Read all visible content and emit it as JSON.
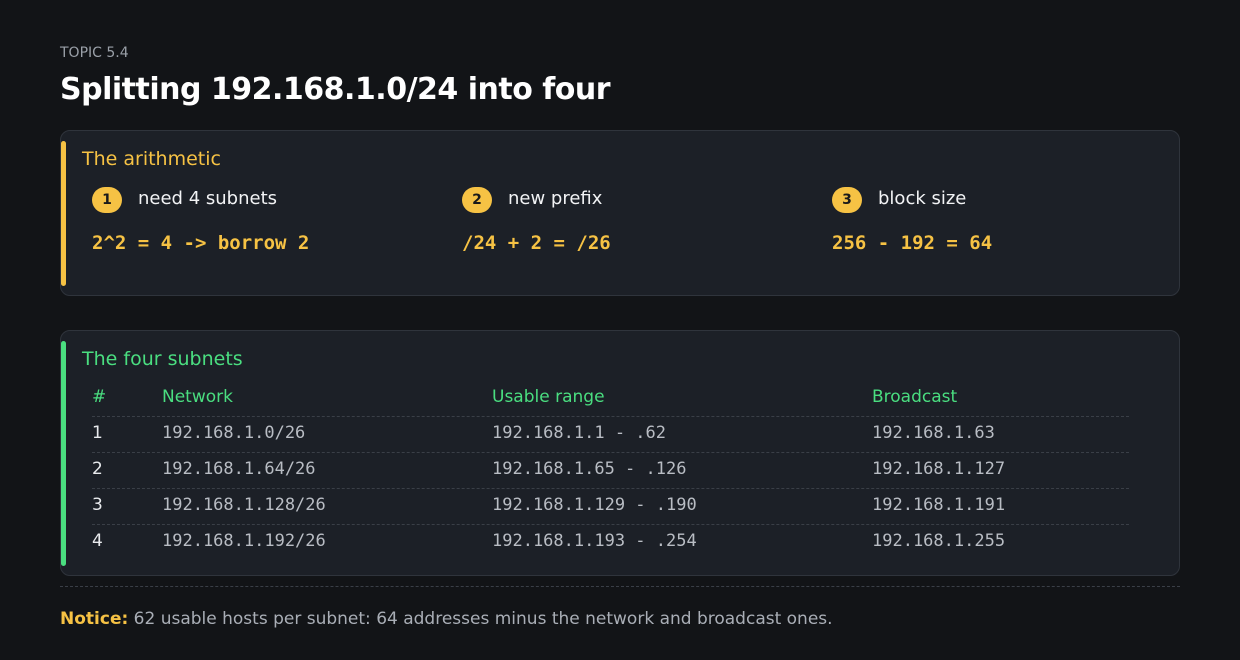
{
  "header": {
    "kicker": "TOPIC 5.4",
    "title": "Splitting 192.168.1.0/24 into four"
  },
  "arithmetic": {
    "title": "The arithmetic",
    "steps": [
      {
        "number": 1,
        "label": "need 4 subnets",
        "formula": "2^2 = 4 -> borrow 2"
      },
      {
        "number": 2,
        "label": "new prefix",
        "formula": "/24 + 2 = /26"
      },
      {
        "number": 3,
        "label": "block size",
        "formula": "256 - 192 = 64"
      }
    ]
  },
  "subnets": {
    "title": "The four subnets",
    "columns": [
      "#",
      "Network",
      "Usable range",
      "Broadcast"
    ],
    "rows": [
      [
        1,
        "192.168.1.0/26",
        "192.168.1.1 - .62",
        "192.168.1.63"
      ],
      [
        2,
        "192.168.1.64/26",
        "192.168.1.65 - .126",
        "192.168.1.127"
      ],
      [
        3,
        "192.168.1.128/26",
        "192.168.1.129 - .190",
        "192.168.1.191"
      ],
      [
        4,
        "192.168.1.192/26",
        "192.168.1.193 - .254",
        "192.168.1.255"
      ]
    ]
  },
  "notice": {
    "label": "Notice:",
    "text": "62 usable hosts per subnet: 64 addresses minus the network and broadcast ones."
  }
}
